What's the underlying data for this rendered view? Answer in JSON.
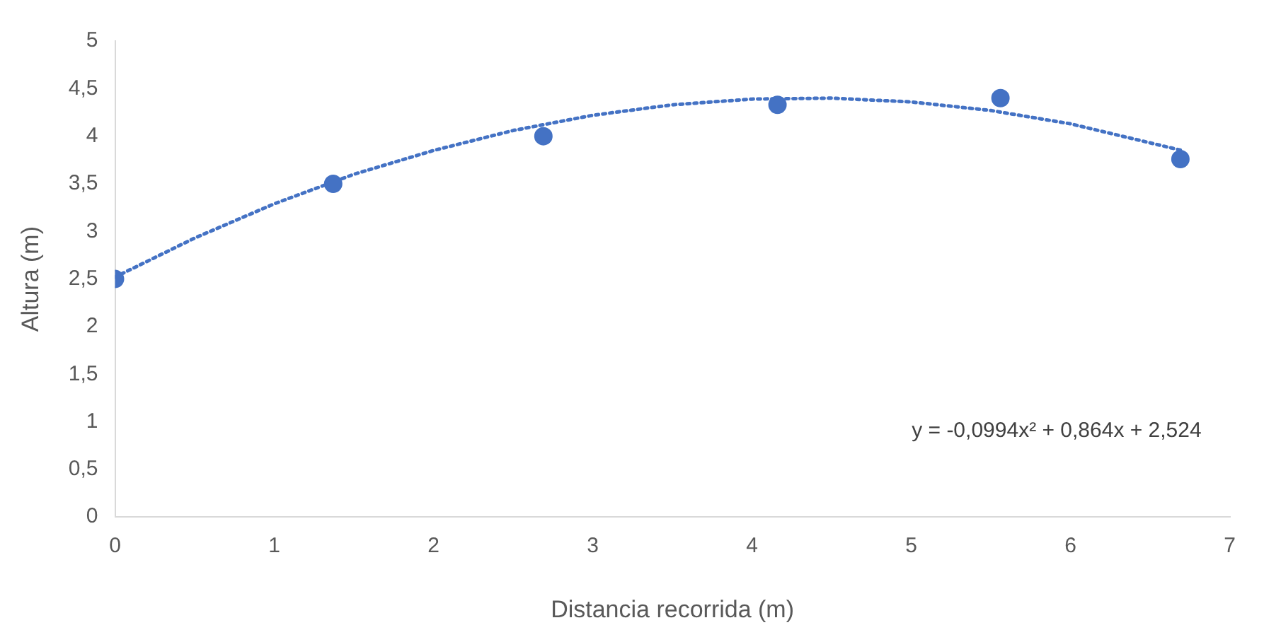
{
  "chart_data": {
    "type": "scatter",
    "xlabel": "Distancia recorrida (m)",
    "ylabel": "Altura (m)",
    "legend": false,
    "grid": false,
    "xlim": [
      0,
      7
    ],
    "xticks": [
      0,
      1,
      2,
      3,
      4,
      5,
      6,
      7
    ],
    "ylim": [
      0,
      5
    ],
    "yticks": [
      0,
      {
        "value": 0.5,
        "label": "0,5"
      },
      1,
      {
        "value": 1.5,
        "label": "1,5"
      },
      2,
      {
        "value": 2.5,
        "label": "2,5"
      },
      3,
      {
        "value": 3.5,
        "label": "3,5"
      },
      4,
      {
        "value": 4.5,
        "label": "4,5"
      },
      5
    ],
    "annotations": [
      "y = -0,0994x² + 0,864x + 2,524"
    ],
    "series": [
      {
        "type": "scatter",
        "marker": "circle",
        "color": "#4472c4",
        "x": [
          0,
          1.37,
          2.69,
          4.16,
          5.56,
          6.69
        ],
        "values": [
          2.5,
          3.5,
          4.0,
          4.33,
          4.4,
          3.76
        ]
      },
      {
        "type": "line",
        "color": "#4472c4",
        "line_style": "dotted",
        "x": [
          0,
          0.5,
          1,
          1.5,
          2,
          2.5,
          3,
          3.5,
          4,
          4.5,
          5,
          5.5,
          6,
          6.7
        ],
        "values": [
          2.52,
          2.93,
          3.29,
          3.6,
          3.85,
          4.06,
          4.22,
          4.33,
          4.39,
          4.4,
          4.36,
          4.27,
          4.13,
          3.85
        ]
      }
    ]
  }
}
